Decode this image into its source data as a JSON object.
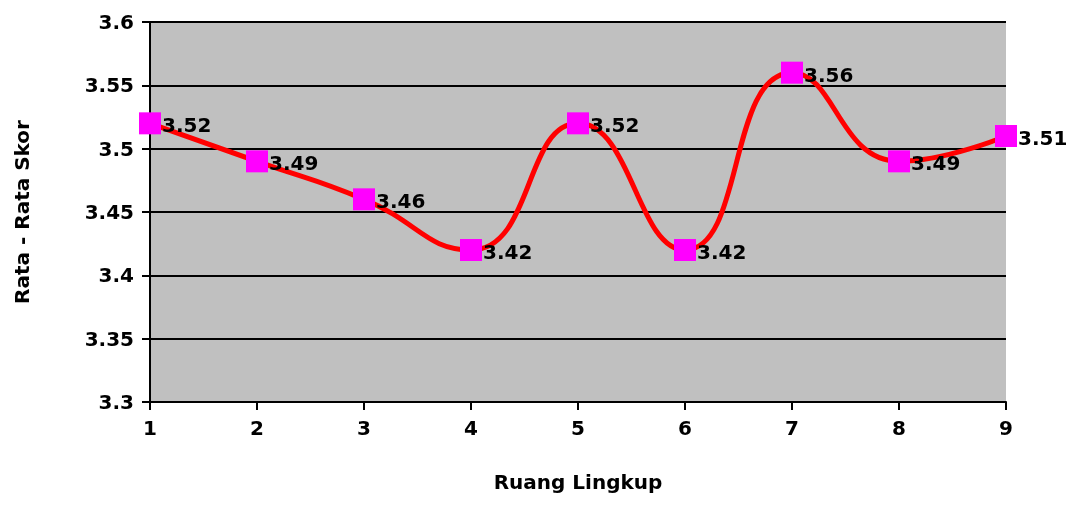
{
  "chart_data": {
    "type": "line",
    "xlabel": "Ruang Lingkup",
    "ylabel": "Rata - Rata Skor",
    "x": [
      1,
      2,
      3,
      4,
      5,
      6,
      7,
      8,
      9
    ],
    "series": [
      {
        "color": "#ff0000",
        "values": [
          3.52,
          3.49,
          3.46,
          3.42,
          3.52,
          3.42,
          3.56,
          3.49,
          3.51
        ]
      }
    ],
    "xlim": [
      1,
      9
    ],
    "xticks": [
      1,
      2,
      3,
      4,
      5,
      6,
      7,
      8,
      9
    ],
    "ylim": [
      3.3,
      3.6
    ],
    "yticks": [
      3.3,
      3.35,
      3.4,
      3.45,
      3.5,
      3.55,
      3.6
    ],
    "grid": "y",
    "marker": "square",
    "line_style": "solid",
    "data_labels": true
  }
}
